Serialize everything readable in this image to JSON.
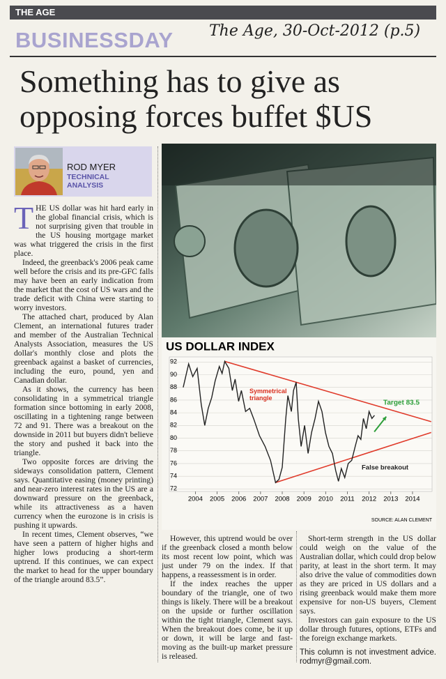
{
  "masthead": {
    "paper": "THE AGE",
    "section": "BUSINESSDAY",
    "handwritten": "The Age, 30-Oct-2012 (p.5)"
  },
  "headline": "Something has to give as opposing forces buffet $US",
  "byline": {
    "name": "ROD MYER",
    "column": "TECHNICAL ANALYSIS"
  },
  "paragraphs": [
    "THE US dollar was hit hard early in the global financial crisis, which is not surprising given that trouble in the US housing mortgage market was what triggered the crisis in the first place.",
    "Indeed, the greenback's 2006 peak came well before the crisis and its pre-GFC falls may have been an early indication from the market that the cost of US wars and the trade deficit with China were starting to worry investors.",
    "The attached chart, produced by Alan Clement, an international futures trader and member of the Australian Technical Analysts Association, measures the US dollar's monthly close and plots the greenback against a basket of currencies, including the euro, pound, yen and Canadian dollar.",
    "As it shows, the currency has been consolidating in a symmetrical triangle formation since bottoming in early 2008, oscillating in a tightening range between 72 and 91. There was a breakout on the downside in 2011 but buyers didn't believe the story and pushed it back into the triangle.",
    "Two opposite forces are driving the sideways consolidation pattern, Clement says. Quantitative easing (money printing) and near-zero interest rates in the US are a downward pressure on the greenback, while its attractiveness as a haven currency when the eurozone is in crisis is pushing it upwards.",
    "In recent times, Clement observes, “we have seen a pattern of higher highs and higher lows producing a short-term uptrend. If this continues, we can expect the market to head for the upper boundary of the triangle around 83.5”.",
    "However, this uptrend would be over if the greenback closed a month below its most recent low point, which was just under 79 on the index. If that happens, a reassessment is in order.",
    "If the index reaches the upper boundary of the triangle, one of two things is likely. There will be a breakout on the upside or further oscillation within the tight triangle, Clement says. When the breakout does come, be it up or down, it will be large and fast-moving as the built-up market pressure is released.",
    "Short-term strength in the US dollar could weigh on the value of the Australian dollar, which could drop below parity, at least in the short term. It may also drive the value of commodities down as they are priced in US dollars and a rising greenback would make them more expensive for non-US buyers, Clement says.",
    "Investors can gain exposure to the US dollar through futures, options, ETFs and the foreign exchange markets.",
    "This column is not investment advice. rodmyr@gmail.com."
  ],
  "chart_data": {
    "type": "line",
    "title": "US DOLLAR INDEX",
    "source": "SOURCE: ALAN CLEMENT",
    "color": "#222222",
    "x": [
      2003.44,
      2003.69,
      2003.88,
      2004.08,
      2004.27,
      2004.43,
      2004.59,
      2004.75,
      2004.91,
      2005.1,
      2005.23,
      2005.35,
      2005.54,
      2005.7,
      2005.83,
      2005.99,
      2006.12,
      2006.31,
      2006.5,
      2006.69,
      2006.95,
      2007.21,
      2007.46,
      2007.69,
      2007.85,
      2008.0,
      2008.16,
      2008.26,
      2008.42,
      2008.52,
      2008.64,
      2008.74,
      2008.87,
      2009.03,
      2009.19,
      2009.35,
      2009.51,
      2009.67,
      2009.83,
      2009.99,
      2010.15,
      2010.31,
      2010.46,
      2010.59,
      2010.72,
      2010.88,
      2011.04,
      2011.2,
      2011.36,
      2011.49,
      2011.62,
      2011.74,
      2011.87,
      2012.0,
      2012.13,
      2012.25
    ],
    "values": [
      88,
      91.7,
      89.7,
      91,
      85.3,
      82,
      84.7,
      86.4,
      89,
      91.3,
      90.2,
      92.1,
      91,
      87.5,
      89.3,
      85.8,
      87.5,
      84.2,
      84.7,
      83,
      80.4,
      78.7,
      76.5,
      73,
      73.5,
      75.4,
      83,
      86.7,
      84.2,
      87.5,
      88.8,
      83,
      78.7,
      82,
      77.6,
      80.9,
      83.1,
      85.8,
      84.2,
      80.9,
      78.7,
      77.6,
      74.9,
      73.2,
      75.2,
      73.8,
      76,
      76.5,
      78.7,
      80.4,
      79.8,
      83.1,
      81.5,
      84.2,
      83.1,
      83.6
    ],
    "trendlines": [
      {
        "color": "#e03a2a",
        "x": [
          2005.35,
          2014.86
        ],
        "values": [
          92.1,
          82.6
        ]
      },
      {
        "color": "#e03a2a",
        "x": [
          2007.69,
          2014.86
        ],
        "values": [
          73,
          80.9
        ]
      }
    ],
    "arrow": {
      "color": "#2e9e3a",
      "x": [
        2012.24,
        2012.79
      ],
      "values": [
        81,
        83.4
      ]
    },
    "annotations": {
      "triangle": "Symmetrical triangle",
      "target": "Target 83.5",
      "false_breakout": "False breakout"
    },
    "xlim": [
      2002.8,
      2014.9
    ],
    "xticks": [
      2004,
      2005,
      2006,
      2007,
      2008,
      2009,
      2010,
      2011,
      2012,
      2013,
      2014
    ],
    "ylim": [
      71.6,
      92.8
    ],
    "yticks": [
      72,
      74,
      76,
      78,
      80,
      82,
      84,
      86,
      88,
      90,
      92
    ],
    "grid": true
  }
}
